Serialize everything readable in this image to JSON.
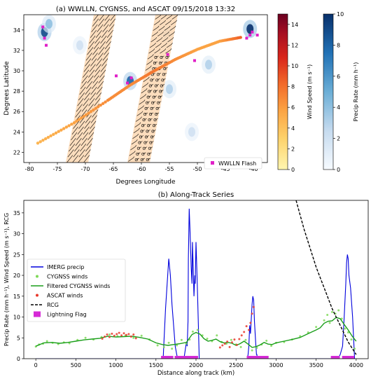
{
  "chart_data": [
    {
      "type": "map",
      "title": "(a) WWLLN, CYGNSS, and ASCAT 09/15/2018 13:32",
      "xlabel": "Degrees Longitude",
      "ylabel": "Degrees Latitude",
      "xlim": [
        -81,
        -37.5
      ],
      "ylim": [
        21,
        35.5
      ],
      "x_ticks": [
        -80,
        -75,
        -70,
        -65,
        -60,
        -55,
        -50,
        -45,
        -40
      ],
      "y_ticks": [
        22,
        24,
        26,
        28,
        30,
        32,
        34
      ],
      "legend": {
        "label": "WWLLN Flash",
        "position": "bottom-right"
      },
      "colorbars": [
        {
          "label": "Wind Speed (m s⁻¹)",
          "ticks": [
            0,
            2,
            4,
            6,
            8,
            10,
            12,
            14
          ],
          "range": [
            0,
            15
          ],
          "colors": [
            "#fff6b0",
            "#fdd26b",
            "#fba343",
            "#f26a2a",
            "#d9261c",
            "#a50e22",
            "#6b0021"
          ]
        },
        {
          "label": "Precip Rate (mm h⁻¹)",
          "ticks": [
            0,
            2,
            4,
            6,
            8,
            10
          ],
          "range": [
            0,
            10
          ],
          "colors": [
            "#f7fbff",
            "#c6dbef",
            "#6baed6",
            "#2171b5",
            "#08306b"
          ]
        }
      ],
      "cygnss_track": {
        "lon": [
          -78.5,
          -72,
          -66,
          -62,
          -58,
          -54,
          -50,
          -46,
          -42
        ],
        "lat": [
          22.9,
          24.9,
          27.1,
          28.6,
          29.9,
          31.1,
          32.1,
          32.9,
          33.3
        ],
        "wind_speed": [
          4,
          5,
          6,
          6,
          7,
          6,
          5,
          5,
          8
        ]
      },
      "ascat_swaths": [
        {
          "lon_left": [
            -73.5,
            -68.5
          ],
          "lon_right": [
            -69.5,
            -64.5
          ],
          "lat": [
            21,
            35.5
          ]
        },
        {
          "lon_left": [
            -62.5,
            -57.5
          ],
          "lon_right": [
            -58.5,
            -53.5
          ],
          "lat": [
            21,
            35.5
          ]
        }
      ],
      "wwlln_flashes": [
        [
          -77.6,
          34.3
        ],
        [
          -77.3,
          33.2
        ],
        [
          -77.0,
          32.5
        ],
        [
          -64.5,
          29.5
        ],
        [
          -62.5,
          28.8
        ],
        [
          -61.8,
          29.3
        ],
        [
          -55.3,
          31.6
        ],
        [
          -50.5,
          31.0
        ],
        [
          -41.2,
          33.2
        ],
        [
          -40.6,
          33.5
        ],
        [
          -40.2,
          33.8
        ],
        [
          -39.3,
          33.5
        ]
      ],
      "precip_cells": [
        [
          -77.3,
          33.8,
          9
        ],
        [
          -76.5,
          34.6,
          4
        ],
        [
          -62.0,
          29.0,
          8
        ],
        [
          -55.0,
          28.2,
          3
        ],
        [
          -48.0,
          30.6,
          3
        ],
        [
          -40.6,
          34.1,
          10
        ],
        [
          -51.0,
          24.0,
          2
        ],
        [
          -55.5,
          33.6,
          3
        ],
        [
          -71.0,
          32.5,
          2
        ]
      ]
    },
    {
      "type": "line",
      "title": "(b) Along-Track Series",
      "xlabel": "Distance along track (km)",
      "ylabel": "Precip Rate (mm h⁻¹), Wind Speed (m s⁻¹), RCG",
      "xlim": [
        -150,
        4150
      ],
      "ylim": [
        0,
        38
      ],
      "x_ticks": [
        0,
        500,
        1000,
        1500,
        2000,
        2500,
        3000,
        3500,
        4000
      ],
      "y_ticks": [
        0,
        5,
        10,
        15,
        20,
        25,
        30,
        35
      ],
      "legend_position": "center-left",
      "series": [
        {
          "name": "IMERG precip",
          "color": "#0000dd",
          "x": [
            0,
            1590,
            1600,
            1620,
            1640,
            1660,
            1680,
            1700,
            1720,
            1740,
            1760,
            1770,
            1790,
            1850,
            1880,
            1890,
            1900,
            1905,
            1915,
            1925,
            1940,
            1950,
            1955,
            1965,
            1975,
            1985,
            1990,
            2000,
            2010,
            2020,
            2030,
            2040,
            2600,
            2640,
            2650,
            2660,
            2670,
            2680,
            2700,
            2710,
            2720,
            2730,
            2745,
            2755,
            2760,
            2765,
            3775,
            3800,
            3830,
            3850,
            3870,
            3880,
            3890,
            3900,
            3910,
            3930,
            3955,
            3970,
            3980
          ],
          "values": [
            0,
            0,
            4,
            12,
            18,
            24,
            20,
            13,
            8,
            3,
            1,
            0,
            0,
            0,
            4,
            3,
            9,
            24,
            36,
            31,
            22,
            18,
            28,
            22,
            15,
            20,
            18,
            28,
            22,
            15,
            8,
            0,
            0,
            0,
            1,
            3,
            8,
            6,
            13,
            15,
            14,
            9,
            4,
            1,
            1,
            0,
            0,
            1,
            3,
            10,
            18,
            23,
            25,
            24,
            20,
            17,
            10,
            4,
            0
          ]
        },
        {
          "name": "CYGNSS winds",
          "color": "#7ed957",
          "style": "scatter",
          "x": [
            0,
            40,
            90,
            140,
            210,
            280,
            350,
            420,
            520,
            620,
            720,
            820,
            920,
            1020,
            1120,
            1220,
            1320,
            1420,
            1520,
            1600,
            1660,
            1700,
            1760,
            1820,
            1880,
            1920,
            1960,
            2020,
            2080,
            2140,
            2200,
            2260,
            2320,
            2380,
            2440,
            2500,
            2560,
            2620,
            2700,
            2760,
            2820,
            2880,
            2940,
            3000,
            3100,
            3200,
            3300,
            3400,
            3500,
            3600,
            3640,
            3670,
            3700,
            3740,
            3780,
            3820,
            3860,
            3900,
            3940,
            3980
          ],
          "values": [
            2.9,
            3.4,
            3.6,
            4.2,
            3.8,
            3.5,
            3.9,
            3.7,
            4.5,
            5.0,
            4.6,
            5.2,
            5.8,
            5.4,
            5.6,
            5.0,
            5.5,
            4.6,
            3.2,
            2.8,
            3.8,
            2.4,
            3.2,
            4.5,
            3.6,
            4.6,
            6.5,
            6.9,
            5.6,
            4.8,
            4.2,
            5.6,
            4.0,
            3.6,
            4.5,
            3.4,
            2.8,
            4.5,
            2.0,
            2.6,
            3.4,
            4.3,
            3.1,
            3.8,
            4.0,
            4.6,
            5.4,
            6.3,
            7.6,
            9.2,
            10.5,
            8.6,
            11.2,
            10.8,
            11.6,
            9.6,
            7.2,
            6.3,
            4.6,
            2.4
          ]
        },
        {
          "name": "Filtered CYGNSS winds",
          "color": "#1a9e1a",
          "x": [
            0,
            100,
            200,
            300,
            400,
            500,
            600,
            700,
            800,
            900,
            1000,
            1100,
            1200,
            1300,
            1400,
            1500,
            1580,
            1650,
            1720,
            1800,
            1880,
            1950,
            2000,
            2050,
            2100,
            2150,
            2200,
            2250,
            2300,
            2350,
            2400,
            2450,
            2500,
            2550,
            2600,
            2650,
            2700,
            2750,
            2800,
            2850,
            2900,
            2950,
            3000,
            3100,
            3200,
            3300,
            3400,
            3500,
            3550,
            3600,
            3650,
            3700,
            3750,
            3800,
            3850,
            3900,
            3950,
            4000
          ],
          "values": [
            3.0,
            3.8,
            3.9,
            3.7,
            3.9,
            4.2,
            4.5,
            4.7,
            4.9,
            5.4,
            5.2,
            5.3,
            5.4,
            5.1,
            4.7,
            3.8,
            3.4,
            3.2,
            3.4,
            3.6,
            3.9,
            5.8,
            6.3,
            5.9,
            4.8,
            4.2,
            4.4,
            4.7,
            4.1,
            3.8,
            3.9,
            3.7,
            3.2,
            3.6,
            4.2,
            3.5,
            2.7,
            2.9,
            3.3,
            3.9,
            3.5,
            3.4,
            3.8,
            4.2,
            4.6,
            5.1,
            6.0,
            6.9,
            7.4,
            8.5,
            9.0,
            9.1,
            9.9,
            9.6,
            8.2,
            6.9,
            5.4,
            4.2
          ]
        },
        {
          "name": "ASCAT winds",
          "color": "#e8382b",
          "style": "scatter",
          "x": [
            830,
            860,
            890,
            920,
            950,
            980,
            1010,
            1040,
            1070,
            1100,
            1130,
            1160,
            1190,
            1220,
            1250,
            2300,
            2330,
            2360,
            2390,
            2420,
            2450,
            2480,
            2510,
            2540,
            2570,
            2600,
            2630,
            2660,
            2680,
            2700,
            2720
          ],
          "values": [
            4.8,
            5.3,
            5.8,
            5.2,
            6.0,
            5.5,
            5.9,
            6.2,
            5.6,
            6.1,
            5.7,
            5.9,
            5.3,
            5.8,
            4.9,
            2.7,
            3.2,
            3.6,
            4.1,
            2.8,
            3.9,
            4.6,
            3.3,
            4.7,
            5.6,
            6.4,
            7.8,
            6.9,
            8.6,
            10.8,
            12.4
          ]
        },
        {
          "name": "RCG",
          "color": "#000000",
          "style": "dashed",
          "x": [
            3250,
            3300,
            3350,
            3400,
            3450,
            3500,
            3550,
            3600,
            3650,
            3700,
            3750,
            3800,
            3850,
            3900,
            3950,
            4000
          ],
          "values": [
            38,
            34.5,
            31,
            28,
            25,
            22,
            19.5,
            17,
            14.5,
            12,
            10,
            8,
            6,
            4,
            2.5,
            1
          ]
        },
        {
          "name": "Lightning Flag",
          "color": "#d62ad6",
          "style": "markers",
          "x": [
            1590,
            1610,
            1630,
            1650,
            1670,
            1690,
            1760,
            1780,
            1800,
            1820,
            1840,
            1860,
            1880,
            1900,
            1920,
            1940,
            1960,
            1980,
            2000,
            2660,
            2680,
            2700,
            2720,
            2740,
            2760,
            2800,
            2820,
            2840,
            2860,
            2880,
            3710,
            3730,
            3750,
            3770,
            3850,
            3870,
            3890,
            3910,
            3930,
            3950
          ],
          "values": [
            0.4,
            0.4,
            0.4,
            0.4,
            0.4,
            0.4,
            0.4,
            0.4,
            0.4,
            0.4,
            0.4,
            0.4,
            0.4,
            0.4,
            0.4,
            0.4,
            0.4,
            0.4,
            0.4,
            0.4,
            0.4,
            0.4,
            0.4,
            0.4,
            0.4,
            0.4,
            0.4,
            0.4,
            0.4,
            0.4,
            0.4,
            0.4,
            0.4,
            0.4,
            0.4,
            0.4,
            0.4,
            0.4,
            0.4,
            0.4
          ]
        }
      ]
    }
  ]
}
